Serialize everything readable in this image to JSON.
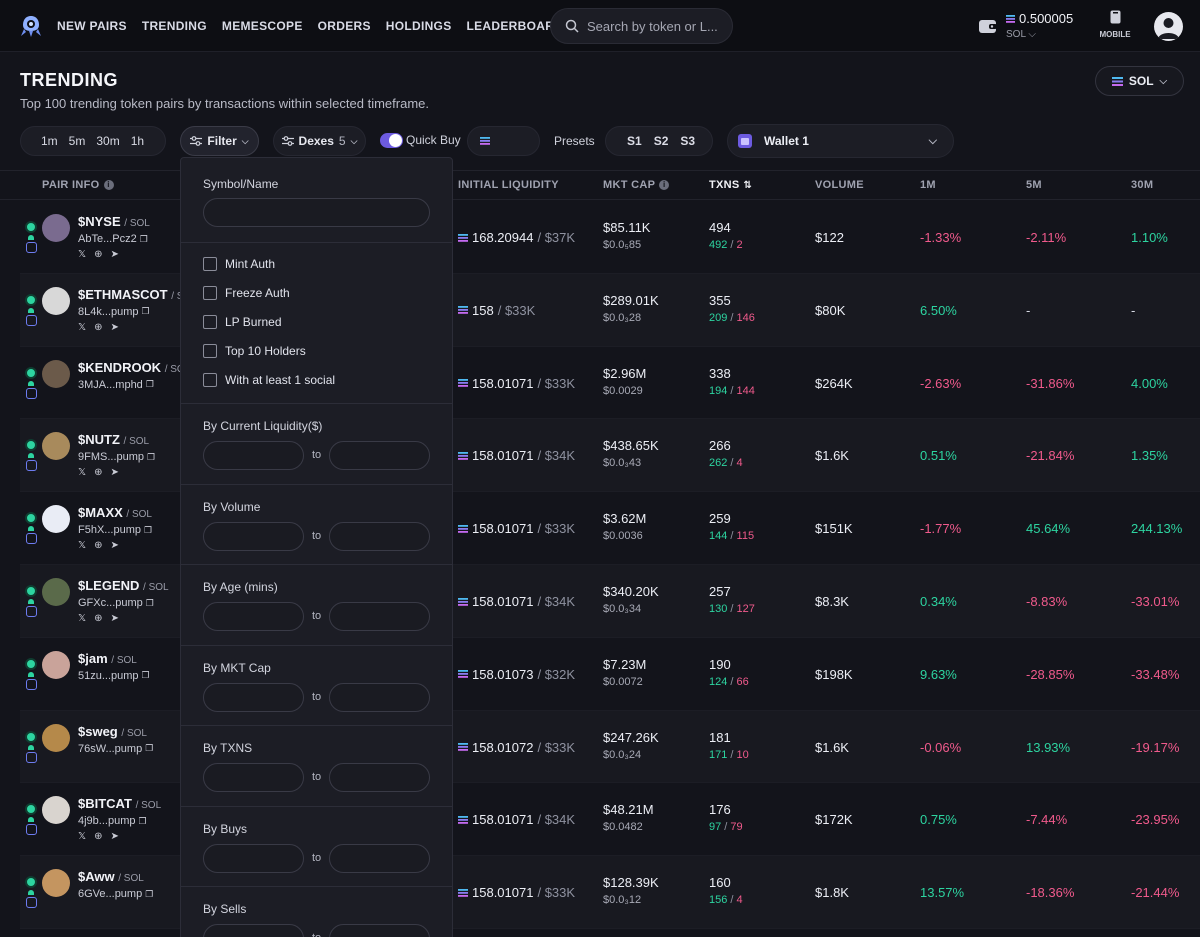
{
  "nav": {
    "links": [
      "NEW PAIRS",
      "TRENDING",
      "MEMESCOPE",
      "ORDERS",
      "HOLDINGS",
      "LEADERBOARD"
    ],
    "search_placeholder": "Search by token or L...",
    "balance": "0.500005",
    "balance_unit": "SOL",
    "mobile_label": "MOBILE"
  },
  "header": {
    "title": "TRENDING",
    "subtitle": "Top 100 trending token pairs by transactions within selected timeframe.",
    "currency": "SOL"
  },
  "toolbar": {
    "timeframes": [
      "1m",
      "5m",
      "30m",
      "1h"
    ],
    "filter_label": "Filter",
    "dexes_label": "Dexes",
    "dexes_count": "5",
    "quick_buy_label": "Quick Buy",
    "presets_label": "Presets",
    "presets": [
      "S1",
      "S2",
      "S3"
    ],
    "wallet_label": "Wallet 1"
  },
  "columns": {
    "pair_info": "PAIR INFO",
    "initial_liquidity": "INITIAL LIQUIDITY",
    "mkt_cap": "MKT CAP",
    "txns": "TXNS",
    "volume": "VOLUME",
    "m1": "1M",
    "m5": "5M",
    "m30": "30M"
  },
  "rows": [
    {
      "name": "$NYSE",
      "chain": "SOL",
      "addr": "AbTe...Pcz2",
      "socials": true,
      "liq": "168.20944",
      "liq_usd": "$37K",
      "mcap": "$85.11K",
      "mcap_sub": "$0.0₅85",
      "txns": "494",
      "buys": "492",
      "sells": "2",
      "volume": "$122",
      "m1": "-1.33%",
      "m5": "-2.11%",
      "m30": "1.10%",
      "color": "#7a6b8f"
    },
    {
      "name": "$ETHMASCOT",
      "chain": "SOL",
      "addr": "8L4k...pump",
      "socials": true,
      "liq": "158",
      "liq_usd": "$33K",
      "mcap": "$289.01K",
      "mcap_sub": "$0.0₃28",
      "txns": "355",
      "buys": "209",
      "sells": "146",
      "volume": "$80K",
      "m1": "6.50%",
      "m5": "-",
      "m30": "-",
      "color": "#d8d8d8"
    },
    {
      "name": "$KENDROOK",
      "chain": "SOL",
      "addr": "3MJA...mphd",
      "socials": false,
      "liq": "158.01071",
      "liq_usd": "$33K",
      "mcap": "$2.96M",
      "mcap_sub": "$0.0029",
      "txns": "338",
      "buys": "194",
      "sells": "144",
      "volume": "$264K",
      "m1": "-2.63%",
      "m5": "-31.86%",
      "m30": "4.00%",
      "color": "#6b5a4a"
    },
    {
      "name": "$NUTZ",
      "chain": "SOL",
      "addr": "9FMS...pump",
      "socials": true,
      "liq": "158.01071",
      "liq_usd": "$34K",
      "mcap": "$438.65K",
      "mcap_sub": "$0.0₃43",
      "txns": "266",
      "buys": "262",
      "sells": "4",
      "volume": "$1.6K",
      "m1": "0.51%",
      "m5": "-21.84%",
      "m30": "1.35%",
      "color": "#a88a5c"
    },
    {
      "name": "$MAXX",
      "chain": "SOL",
      "addr": "F5hX...pump",
      "socials": true,
      "liq": "158.01071",
      "liq_usd": "$33K",
      "mcap": "$3.62M",
      "mcap_sub": "$0.0036",
      "txns": "259",
      "buys": "144",
      "sells": "115",
      "volume": "$151K",
      "m1": "-1.77%",
      "m5": "45.64%",
      "m30": "244.13%",
      "color": "#e9ecf5"
    },
    {
      "name": "$LEGEND",
      "chain": "SOL",
      "addr": "GFXc...pump",
      "socials": true,
      "liq": "158.01071",
      "liq_usd": "$34K",
      "mcap": "$340.20K",
      "mcap_sub": "$0.0₃34",
      "txns": "257",
      "buys": "130",
      "sells": "127",
      "volume": "$8.3K",
      "m1": "0.34%",
      "m5": "-8.83%",
      "m30": "-33.01%",
      "color": "#5a6a4a"
    },
    {
      "name": "$jam",
      "chain": "SOL",
      "addr": "51zu...pump",
      "socials": false,
      "liq": "158.01073",
      "liq_usd": "$32K",
      "mcap": "$7.23M",
      "mcap_sub": "$0.0072",
      "txns": "190",
      "buys": "124",
      "sells": "66",
      "volume": "$198K",
      "m1": "9.63%",
      "m5": "-28.85%",
      "m30": "-33.48%",
      "color": "#c9a39a"
    },
    {
      "name": "$sweg",
      "chain": "SOL",
      "addr": "76sW...pump",
      "socials": false,
      "liq": "158.01072",
      "liq_usd": "$33K",
      "mcap": "$247.26K",
      "mcap_sub": "$0.0₃24",
      "txns": "181",
      "buys": "171",
      "sells": "10",
      "volume": "$1.6K",
      "m1": "-0.06%",
      "m5": "13.93%",
      "m30": "-19.17%",
      "color": "#b5894a"
    },
    {
      "name": "$BITCAT",
      "chain": "SOL",
      "addr": "4j9b...pump",
      "socials": true,
      "liq": "158.01071",
      "liq_usd": "$34K",
      "mcap": "$48.21M",
      "mcap_sub": "$0.0482",
      "txns": "176",
      "buys": "97",
      "sells": "79",
      "volume": "$172K",
      "m1": "0.75%",
      "m5": "-7.44%",
      "m30": "-23.95%",
      "color": "#d9d4cf"
    },
    {
      "name": "$Aww",
      "chain": "SOL",
      "addr": "6GVe...pump",
      "socials": false,
      "liq": "158.01071",
      "liq_usd": "$33K",
      "mcap": "$128.39K",
      "mcap_sub": "$0.0₃12",
      "txns": "160",
      "buys": "156",
      "sells": "4",
      "volume": "$1.8K",
      "m1": "13.57%",
      "m5": "-18.36%",
      "m30": "-21.44%",
      "color": "#c49560"
    }
  ],
  "filter_panel": {
    "symbol_label": "Symbol/Name",
    "checks": [
      "Mint Auth",
      "Freeze Auth",
      "LP Burned",
      "Top 10 Holders",
      "With at least 1 social"
    ],
    "ranges": [
      "By Current Liquidity($)",
      "By Volume",
      "By Age (mins)",
      "By MKT Cap",
      "By TXNS",
      "By Buys",
      "By Sells"
    ],
    "to_label": "to"
  },
  "colors": {
    "accent": "#6d5be0",
    "positive": "#2dd4a0",
    "negative": "#f05a8c",
    "background": "#13141b"
  }
}
